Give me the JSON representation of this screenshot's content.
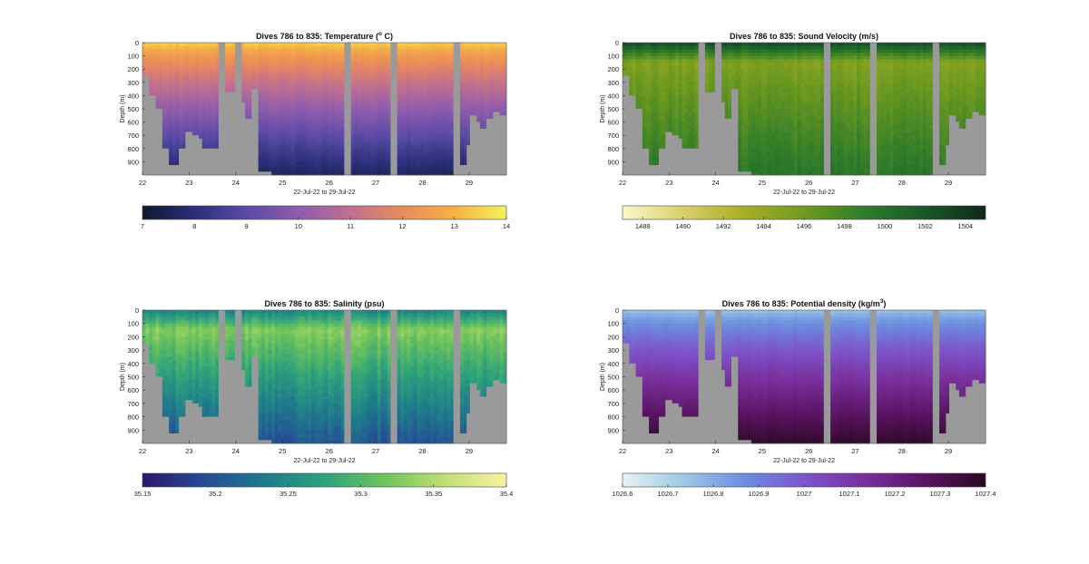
{
  "chart_data": [
    {
      "type": "heatmap",
      "title": "Dives 786 to 835: Temperature (",
      "title_unit_sup": "o",
      "title_suffix": " C)",
      "ylabel": "Depth (m)",
      "xlabel": "22-Jul-22 to 29-Jul-22",
      "x_ticks": [
        "22",
        "23",
        "24",
        "25",
        "26",
        "27",
        "28",
        "29"
      ],
      "y_ticks": [
        "0",
        "100",
        "200",
        "300",
        "400",
        "500",
        "600",
        "700",
        "800",
        "900"
      ],
      "xlim": [
        22,
        29.8
      ],
      "ylim": [
        0,
        1000
      ],
      "colormap": [
        "#0d1a2e",
        "#2b2f7a",
        "#5a4aa6",
        "#8e5cae",
        "#c06f8f",
        "#ea8a5b",
        "#f6b142",
        "#f2f25a"
      ],
      "colorbar_range": [
        7,
        14
      ],
      "colorbar_ticks": [
        "7",
        "8",
        "9",
        "10",
        "11",
        "12",
        "13",
        "14"
      ],
      "surface_value": 13.5,
      "deep_value": 7.6,
      "noise": 0.12
    },
    {
      "type": "heatmap",
      "title": "Dives 786 to 835: Sound Velocity (m/s)",
      "ylabel": "Depth (m)",
      "xlabel": "22-Jul-22 to 29-Jul-22",
      "x_ticks": [
        "22",
        "23",
        "24",
        "25",
        "26",
        "27",
        "28",
        "29"
      ],
      "y_ticks": [
        "0",
        "100",
        "200",
        "300",
        "400",
        "500",
        "600",
        "700",
        "800",
        "900"
      ],
      "xlim": [
        22,
        29.8
      ],
      "ylim": [
        0,
        1000
      ],
      "colormap": [
        "#fbf7c8",
        "#d9cf6b",
        "#a8ae23",
        "#6f9a1f",
        "#2f7c2a",
        "#18582a",
        "#0f2a18"
      ],
      "colorbar_range": [
        1487,
        1505
      ],
      "colorbar_ticks": [
        "1488",
        "1490",
        "1492",
        "1494",
        "1496",
        "1498",
        "1500",
        "1502",
        "1504"
      ],
      "surface_value": 1503,
      "deep_value": 1499.5,
      "mid_value": 1495,
      "noise": 0.6
    },
    {
      "type": "heatmap",
      "title": "Dives 786 to 835: Salinity (psu)",
      "ylabel": "Depth (m)",
      "xlabel": "22-Jul-22 to 29-Jul-22",
      "x_ticks": [
        "22",
        "23",
        "24",
        "25",
        "26",
        "27",
        "28",
        "29"
      ],
      "y_ticks": [
        "0",
        "100",
        "200",
        "300",
        "400",
        "500",
        "600",
        "700",
        "800",
        "900"
      ],
      "xlim": [
        22,
        29.8
      ],
      "ylim": [
        0,
        1000
      ],
      "colormap": [
        "#2a186c",
        "#264b95",
        "#1f7a8c",
        "#2ea27b",
        "#6fc35b",
        "#c2df74",
        "#fbf0a5"
      ],
      "colorbar_range": [
        35.15,
        35.4
      ],
      "colorbar_ticks": [
        "35.15",
        "35.2",
        "35.25",
        "35.3",
        "35.35",
        "35.4"
      ],
      "surface_value": 35.24,
      "deep_value": 35.2,
      "mid_value": 35.33,
      "noise": 0.012
    },
    {
      "type": "heatmap",
      "title": "Dives 786 to 835: Potential density (kg/m",
      "title_unit_sup": "3",
      "title_suffix": ")",
      "ylabel": "Depth (m)",
      "xlabel": "22-Jul-22 to 29-Jul-22",
      "x_ticks": [
        "22",
        "23",
        "24",
        "25",
        "26",
        "27",
        "28",
        "29"
      ],
      "y_ticks": [
        "0",
        "100",
        "200",
        "300",
        "400",
        "500",
        "600",
        "700",
        "800",
        "900"
      ],
      "xlim": [
        22,
        29.8
      ],
      "ylim": [
        0,
        1000
      ],
      "colormap": [
        "#e6f3f3",
        "#9fc8e6",
        "#6b8fe0",
        "#7d55cc",
        "#7a2f9c",
        "#5a1463",
        "#2a0822"
      ],
      "colorbar_range": [
        1026.6,
        1027.4
      ],
      "colorbar_ticks": [
        "1026.6",
        "1026.7",
        "1026.8",
        "1026.9",
        "1027",
        "1027.1",
        "1027.2",
        "1027.3",
        "1027.4"
      ],
      "surface_value": 1026.75,
      "deep_value": 1027.38,
      "noise": 0.01
    }
  ],
  "bathymetry": {
    "x": [
      22.0,
      22.12,
      22.12,
      22.25,
      22.25,
      22.45,
      22.45,
      22.6,
      22.6,
      22.75,
      22.75,
      22.9,
      22.9,
      22.95,
      22.95,
      23.05,
      23.05,
      23.2,
      23.2,
      23.3,
      23.3,
      23.45,
      23.45,
      23.6,
      23.6,
      23.8,
      23.8,
      24.0,
      24.0,
      24.05,
      24.05,
      24.2,
      24.2,
      24.35,
      24.35,
      24.5,
      24.5,
      24.65,
      24.65,
      24.8
    ],
    "depth": [
      250,
      250,
      400,
      400,
      510,
      510,
      790,
      790,
      920,
      920,
      790,
      790,
      600,
      600,
      680,
      680,
      700,
      700,
      720,
      720,
      790,
      790,
      810,
      810,
      0,
      0,
      370,
      370,
      380,
      380,
      460,
      460,
      580,
      580,
      340,
      340,
      980,
      980,
      980,
      980
    ],
    "gaps": [
      [
        24.0,
        24.15
      ],
      [
        26.35,
        26.48
      ],
      [
        27.3,
        27.45
      ],
      [
        28.65,
        28.8
      ]
    ],
    "tail_x": [
      28.8,
      28.95,
      28.95,
      29.05,
      29.05,
      29.15,
      29.15,
      29.25,
      29.25,
      29.35,
      29.35,
      29.55,
      29.55,
      29.68,
      29.68,
      29.8
    ],
    "tail_depth": [
      930,
      930,
      780,
      780,
      560,
      560,
      600,
      600,
      660,
      660,
      570,
      570,
      520,
      520,
      560,
      560
    ]
  }
}
